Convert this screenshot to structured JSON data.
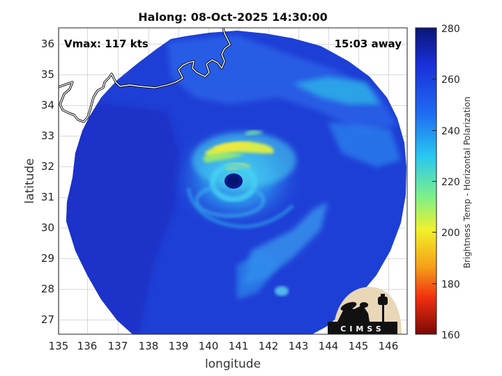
{
  "title": "Halong: 08-Oct-2025 14:30:00",
  "vmax_label": "Vmax: 117 kts",
  "time_away": "15:03 away",
  "xaxis": {
    "label": "longitude",
    "ticks": [
      "135",
      "136",
      "137",
      "138",
      "139",
      "140",
      "141",
      "142",
      "143",
      "144",
      "145",
      "146"
    ]
  },
  "yaxis": {
    "label": "latitude",
    "ticks": [
      "36",
      "35",
      "34",
      "33",
      "32",
      "31",
      "30",
      "29",
      "28",
      "27"
    ]
  },
  "colorbar": {
    "label": "Brightness Temp - Horizontal Polarization",
    "ticks": [
      "280",
      "260",
      "240",
      "220",
      "200",
      "180",
      "160"
    ],
    "min": 160,
    "max": 280
  },
  "logo_text": "CIMSS",
  "colors": {
    "background_swath": "#1e3fd6",
    "eye": "#0a1a8c",
    "cold_band": "#f5e63a"
  }
}
